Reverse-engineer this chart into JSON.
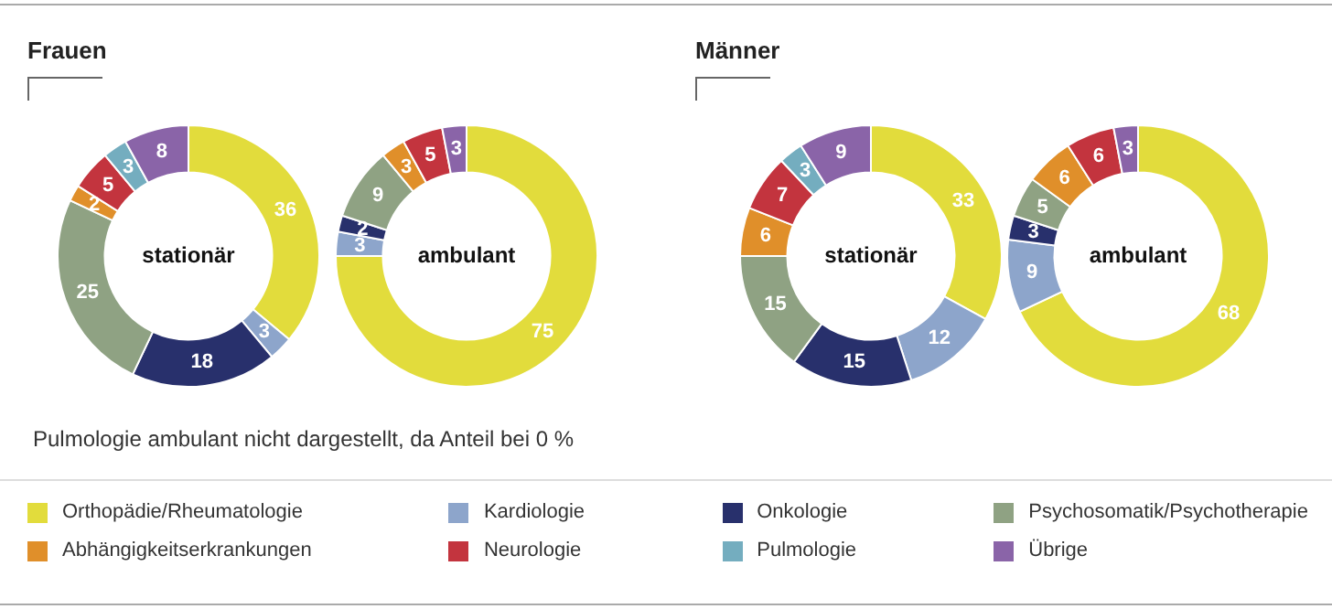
{
  "chart_data": [
    {
      "type": "donut",
      "title": "Frauen",
      "subtitle": "stationär",
      "categories": [
        "Orthopädie/Rheumatologie",
        "Kardiologie",
        "Onkologie",
        "Psychosomatik/Psychotherapie",
        "Abhängigkeitserkrankungen",
        "Neurologie",
        "Pulmologie",
        "Übrige"
      ],
      "values": [
        36,
        3,
        18,
        25,
        2,
        5,
        3,
        8
      ],
      "colors": [
        "#e2dc3c",
        "#8da5cb",
        "#28306c",
        "#8fa283",
        "#e08f2a",
        "#c3343e",
        "#74adbf",
        "#8a64a8"
      ],
      "data_labels": true,
      "legend": "bottom",
      "annotations": [
        "Pulmologie ambulant nicht dargestellt, da Anteil bei 0 %"
      ]
    },
    {
      "type": "donut",
      "subtitle": "ambulant",
      "categories": [
        null,
        null,
        null,
        null,
        null,
        null,
        null
      ],
      "values": [
        75,
        3,
        2,
        9,
        3,
        5,
        3
      ],
      "colors": [
        "#e2dc3c",
        "#8da5cb",
        "#28306c",
        "#8fa283",
        "#e08f2a",
        "#c3343e",
        "#8a64a8"
      ],
      "data_labels": true
    },
    {
      "type": "donut",
      "title": "Männer",
      "subtitle": "stationär",
      "categories": [
        null,
        null,
        null,
        null,
        null,
        null,
        null,
        null
      ],
      "values": [
        33,
        12,
        15,
        15,
        6,
        7,
        3,
        9
      ],
      "colors": [
        "#e2dc3c",
        "#8da5cb",
        "#28306c",
        "#8fa283",
        "#e08f2a",
        "#c3343e",
        "#74adbf",
        "#8a64a8"
      ],
      "data_labels": true
    },
    {
      "type": "donut",
      "subtitle": "ambulant",
      "categories": [
        null,
        null,
        null,
        null,
        null,
        null,
        null
      ],
      "values": [
        68,
        9,
        3,
        5,
        6,
        6,
        3
      ],
      "colors": [
        "#e2dc3c",
        "#8da5cb",
        "#28306c",
        "#8fa283",
        "#e08f2a",
        "#c3343e",
        "#8a64a8"
      ],
      "data_labels": true
    }
  ]
}
